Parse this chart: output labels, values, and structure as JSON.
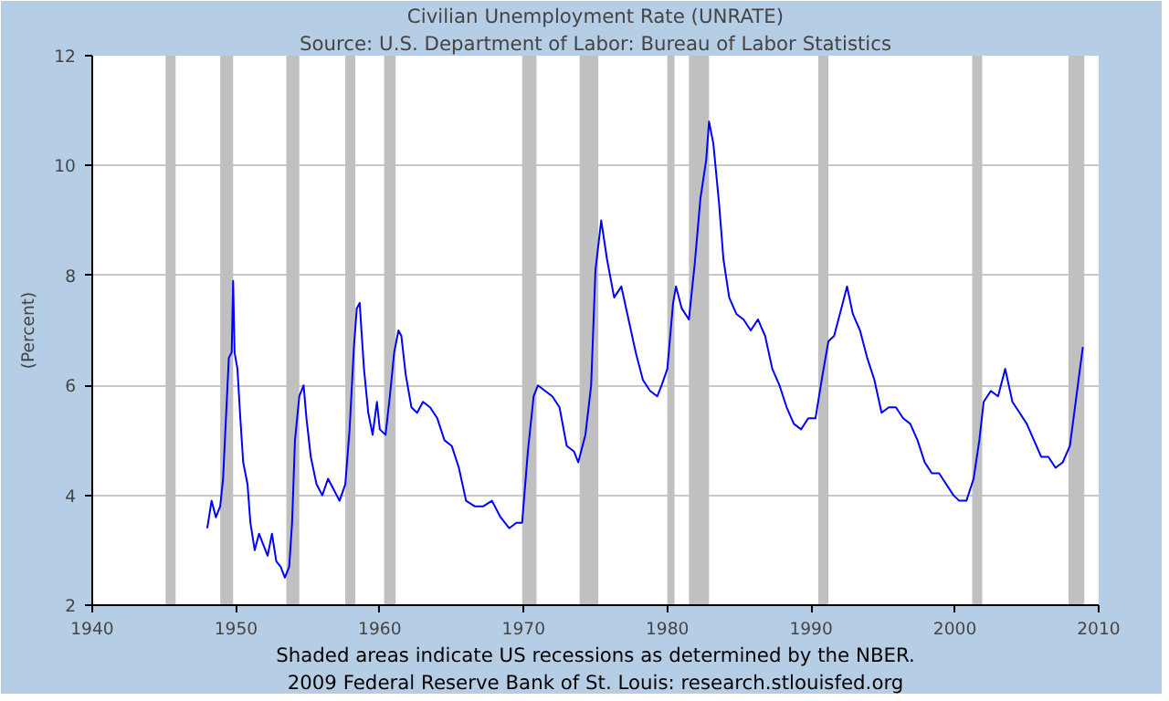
{
  "chart_data": {
    "type": "line",
    "title": "Civilian Unemployment Rate (UNRATE)",
    "subtitle": "Source: U.S. Department of Labor: Bureau of Labor Statistics",
    "ylabel": "(Percent)",
    "annotations": [
      "Shaded areas indicate US recessions as determined by the NBER.",
      "2009 Federal Reserve Bank of St. Louis: research.stlouisfed.org"
    ],
    "series": [
      {
        "color": "#0000ff",
        "x": [
          1948.0,
          1948.3,
          1948.6,
          1948.9,
          1949.1,
          1949.3,
          1949.5,
          1949.7,
          1949.8,
          1949.9,
          1950.1,
          1950.3,
          1950.5,
          1950.8,
          1951.0,
          1951.3,
          1951.6,
          1951.9,
          1952.2,
          1952.5,
          1952.8,
          1953.1,
          1953.4,
          1953.7,
          1953.9,
          1954.1,
          1954.4,
          1954.7,
          1954.9,
          1955.2,
          1955.6,
          1956.0,
          1956.4,
          1956.8,
          1957.2,
          1957.6,
          1957.9,
          1958.2,
          1958.4,
          1958.6,
          1958.9,
          1959.2,
          1959.5,
          1959.8,
          1960.0,
          1960.4,
          1960.7,
          1961.0,
          1961.3,
          1961.5,
          1961.8,
          1962.2,
          1962.6,
          1963.0,
          1963.5,
          1964.0,
          1964.5,
          1965.0,
          1965.5,
          1966.0,
          1966.6,
          1967.2,
          1967.8,
          1968.4,
          1969.0,
          1969.5,
          1969.9,
          1970.3,
          1970.7,
          1971.0,
          1971.5,
          1972.0,
          1972.5,
          1973.0,
          1973.5,
          1973.8,
          1974.3,
          1974.7,
          1975.0,
          1975.4,
          1975.8,
          1976.3,
          1976.8,
          1977.3,
          1977.8,
          1978.3,
          1978.8,
          1979.3,
          1979.6,
          1980.0,
          1980.4,
          1980.6,
          1981.0,
          1981.5,
          1981.9,
          1982.3,
          1982.7,
          1982.9,
          1983.2,
          1983.6,
          1983.9,
          1984.3,
          1984.8,
          1985.3,
          1985.8,
          1986.3,
          1986.8,
          1987.3,
          1987.8,
          1988.3,
          1988.8,
          1989.3,
          1989.8,
          1990.3,
          1990.8,
          1991.2,
          1991.6,
          1992.0,
          1992.5,
          1992.9,
          1993.4,
          1993.9,
          1994.4,
          1994.9,
          1995.4,
          1995.9,
          1996.4,
          1996.9,
          1997.4,
          1997.9,
          1998.4,
          1998.9,
          1999.4,
          1999.9,
          2000.3,
          2000.8,
          2001.3,
          2001.7,
          2002.0,
          2002.5,
          2003.0,
          2003.5,
          2004.0,
          2004.5,
          2005.0,
          2005.5,
          2006.0,
          2006.5,
          2007.0,
          2007.5,
          2008.0,
          2008.3,
          2008.6,
          2008.9
        ],
        "values": [
          3.4,
          3.9,
          3.6,
          3.8,
          4.3,
          5.4,
          6.5,
          6.6,
          7.9,
          6.6,
          6.3,
          5.4,
          4.6,
          4.2,
          3.5,
          3.0,
          3.3,
          3.1,
          2.9,
          3.3,
          2.8,
          2.7,
          2.5,
          2.7,
          3.5,
          5.0,
          5.8,
          6.0,
          5.4,
          4.7,
          4.2,
          4.0,
          4.3,
          4.1,
          3.9,
          4.2,
          5.2,
          6.7,
          7.4,
          7.5,
          6.3,
          5.5,
          5.1,
          5.7,
          5.2,
          5.1,
          5.8,
          6.6,
          7.0,
          6.9,
          6.2,
          5.6,
          5.5,
          5.7,
          5.6,
          5.4,
          5.0,
          4.9,
          4.5,
          3.9,
          3.8,
          3.8,
          3.9,
          3.6,
          3.4,
          3.5,
          3.5,
          4.8,
          5.8,
          6.0,
          5.9,
          5.8,
          5.6,
          4.9,
          4.8,
          4.6,
          5.1,
          6.0,
          8.1,
          9.0,
          8.3,
          7.6,
          7.8,
          7.2,
          6.6,
          6.1,
          5.9,
          5.8,
          6.0,
          6.3,
          7.5,
          7.8,
          7.4,
          7.2,
          8.2,
          9.4,
          10.1,
          10.8,
          10.4,
          9.3,
          8.3,
          7.6,
          7.3,
          7.2,
          7.0,
          7.2,
          6.9,
          6.3,
          6.0,
          5.6,
          5.3,
          5.2,
          5.4,
          5.4,
          6.2,
          6.8,
          6.9,
          7.3,
          7.8,
          7.3,
          7.0,
          6.5,
          6.1,
          5.5,
          5.6,
          5.6,
          5.4,
          5.3,
          5.0,
          4.6,
          4.4,
          4.4,
          4.2,
          4.0,
          3.9,
          3.9,
          4.3,
          5.0,
          5.7,
          5.9,
          5.8,
          6.3,
          5.7,
          5.5,
          5.3,
          5.0,
          4.7,
          4.7,
          4.5,
          4.6,
          4.9,
          5.5,
          6.1,
          6.7
        ]
      }
    ],
    "xlim": [
      1940,
      2010
    ],
    "ylim": [
      2,
      12
    ],
    "xticks": [
      1940,
      1950,
      1960,
      1970,
      1980,
      1990,
      2000,
      2010
    ],
    "yticks": [
      2,
      4,
      6,
      8,
      10,
      12
    ],
    "grid": "y",
    "marker": "none",
    "line_style": "solid",
    "bands": [
      {
        "axis": "x",
        "from": 1945.1,
        "to": 1945.8,
        "color": "#c0c0c0"
      },
      {
        "axis": "x",
        "from": 1948.9,
        "to": 1949.8,
        "color": "#c0c0c0"
      },
      {
        "axis": "x",
        "from": 1953.5,
        "to": 1954.4,
        "color": "#c0c0c0"
      },
      {
        "axis": "x",
        "from": 1957.6,
        "to": 1958.3,
        "color": "#c0c0c0"
      },
      {
        "axis": "x",
        "from": 1960.3,
        "to": 1961.1,
        "color": "#c0c0c0"
      },
      {
        "axis": "x",
        "from": 1969.9,
        "to": 1970.9,
        "color": "#c0c0c0"
      },
      {
        "axis": "x",
        "from": 1973.9,
        "to": 1975.2,
        "color": "#c0c0c0"
      },
      {
        "axis": "x",
        "from": 1980.0,
        "to": 1980.5,
        "color": "#c0c0c0"
      },
      {
        "axis": "x",
        "from": 1981.5,
        "to": 1982.9,
        "color": "#c0c0c0"
      },
      {
        "axis": "x",
        "from": 1990.5,
        "to": 1991.2,
        "color": "#c0c0c0"
      },
      {
        "axis": "x",
        "from": 2001.2,
        "to": 2001.9,
        "color": "#c0c0c0"
      },
      {
        "axis": "x",
        "from": 2007.9,
        "to": 2009.0,
        "color": "#c0c0c0"
      }
    ]
  }
}
